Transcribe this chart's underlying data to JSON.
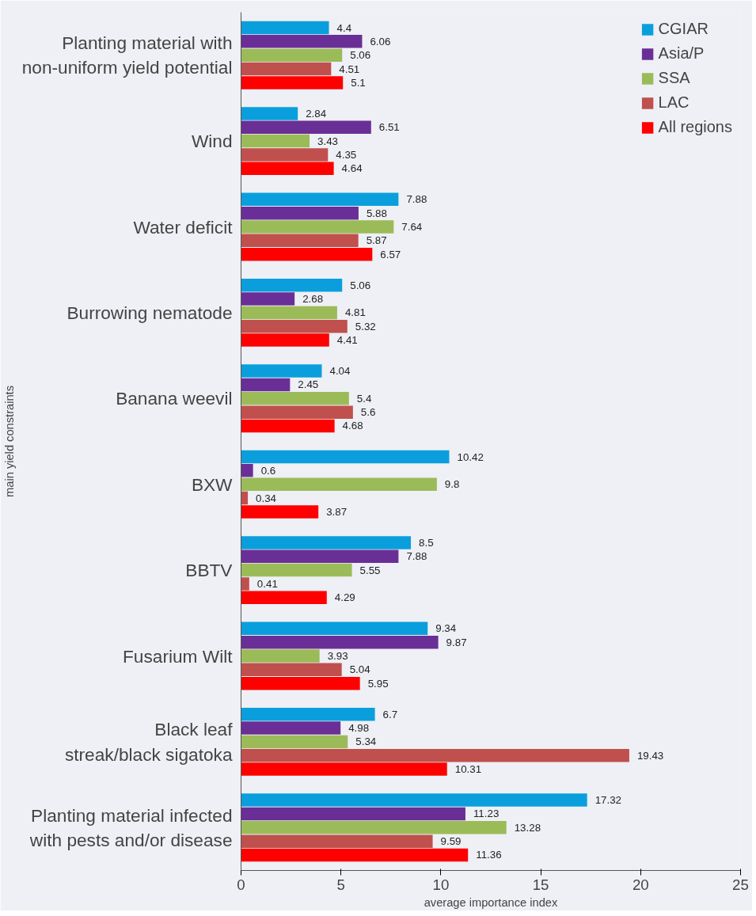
{
  "chart_data": {
    "type": "bar",
    "orientation": "horizontal",
    "xlabel": "average importance index",
    "ylabel": "main yield constraints",
    "categories": [
      "Planting material with\nnon-uniform yield potential",
      "Wind",
      "Water deficit",
      "Burrowing nematode",
      "Banana weevil",
      "BXW",
      "BBTV",
      "Fusarium Wilt",
      "Black leaf\nstreak/black sigatoka",
      "Planting material infected\nwith pests and/or disease"
    ],
    "series": [
      {
        "name": "CGIAR",
        "color": "#0a9fdc",
        "values": [
          4.4,
          2.84,
          7.88,
          5.06,
          4.04,
          10.42,
          8.5,
          9.34,
          6.7,
          17.32
        ]
      },
      {
        "name": "Asia/P",
        "color": "#6a2f96",
        "values": [
          6.06,
          6.51,
          5.88,
          2.68,
          2.45,
          0.6,
          7.88,
          9.87,
          4.98,
          11.23
        ]
      },
      {
        "name": "SSA",
        "color": "#9bbb59",
        "values": [
          5.06,
          3.43,
          7.64,
          4.81,
          5.4,
          9.8,
          5.55,
          3.93,
          5.34,
          13.28
        ]
      },
      {
        "name": "LAC",
        "color": "#c0504d",
        "values": [
          4.51,
          4.35,
          5.87,
          5.32,
          5.6,
          0.34,
          0.41,
          5.04,
          19.43,
          9.59
        ]
      },
      {
        "name": "All regions",
        "color": "#ff0000",
        "values": [
          5.1,
          4.64,
          6.57,
          4.41,
          4.68,
          3.87,
          4.29,
          5.95,
          10.31,
          11.36
        ]
      }
    ],
    "xlim": [
      0,
      25
    ],
    "xticks": [
      0,
      5,
      10,
      15,
      20,
      25
    ],
    "data_labels": true,
    "legend": "top right",
    "grid": false
  }
}
